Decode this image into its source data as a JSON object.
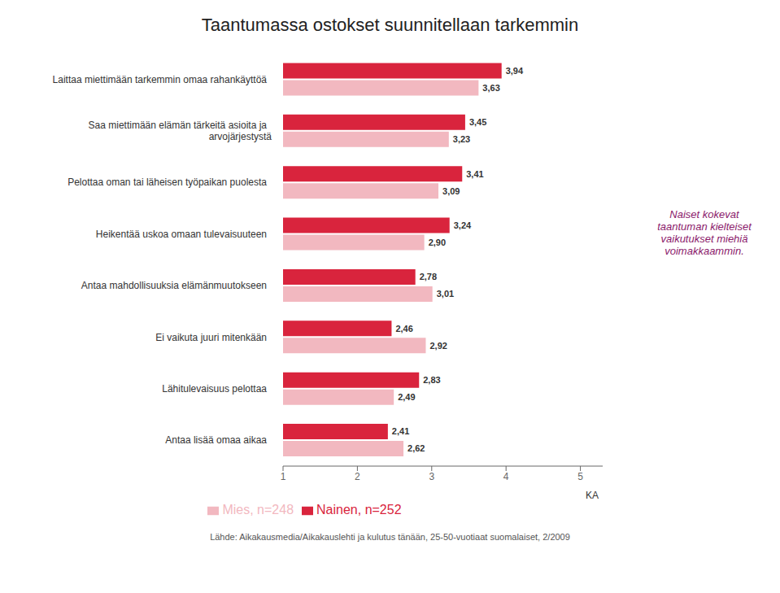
{
  "chart_data": {
    "type": "bar",
    "orientation": "horizontal",
    "title": "Taantumassa ostokset suunnitellaan tarkemmin",
    "categories": [
      "Laittaa miettimään tarkemmin omaa rahankäyttöä",
      "Saa miettimään elämän tärkeitä asioita ja\narvojärjestystä",
      "Pelottaa oman tai läheisen työpaikan puolesta",
      "Heikentää uskoa omaan tulevaisuuteen",
      "Antaa mahdollisuuksia elämänmuutokseen",
      "Ei vaikuta juuri mitenkään",
      "Lähitulevaisuus pelottaa",
      "Antaa lisää omaa aikaa"
    ],
    "series": [
      {
        "name": "Nainen, n=252",
        "color": "#d9243d",
        "values": [
          3.94,
          3.45,
          3.41,
          3.24,
          2.78,
          2.46,
          2.83,
          2.41
        ],
        "value_labels": [
          "3,94",
          "3,45",
          "3,41",
          "3,24",
          "2,78",
          "2,46",
          "2,83",
          "2,41"
        ]
      },
      {
        "name": "Mies, n=248",
        "color": "#f2b8c0",
        "values": [
          3.63,
          3.23,
          3.09,
          2.9,
          3.01,
          2.92,
          2.49,
          2.62
        ],
        "value_labels": [
          "3,63",
          "3,23",
          "3,09",
          "2,90",
          "3,01",
          "2,92",
          "2,49",
          "2,62"
        ]
      }
    ],
    "xlim": [
      1,
      5.3
    ],
    "xticks": [
      1,
      2,
      3,
      4,
      5
    ],
    "xlabel": "KA",
    "data_labels": true,
    "grid": false,
    "legend": "bottom",
    "annotations": [
      {
        "text": "Naiset kokevat\ntaantuman kielteiset\nvaikutukset miehiä\nvoimakkaammin.",
        "color": "#8b1a6b"
      },
      {
        "text": "Lähde: Aikakausmedia/Aikakauslehti ja kulutus tänään, 25-50-vuotiaat suomalaiset, 2/2009"
      }
    ]
  }
}
